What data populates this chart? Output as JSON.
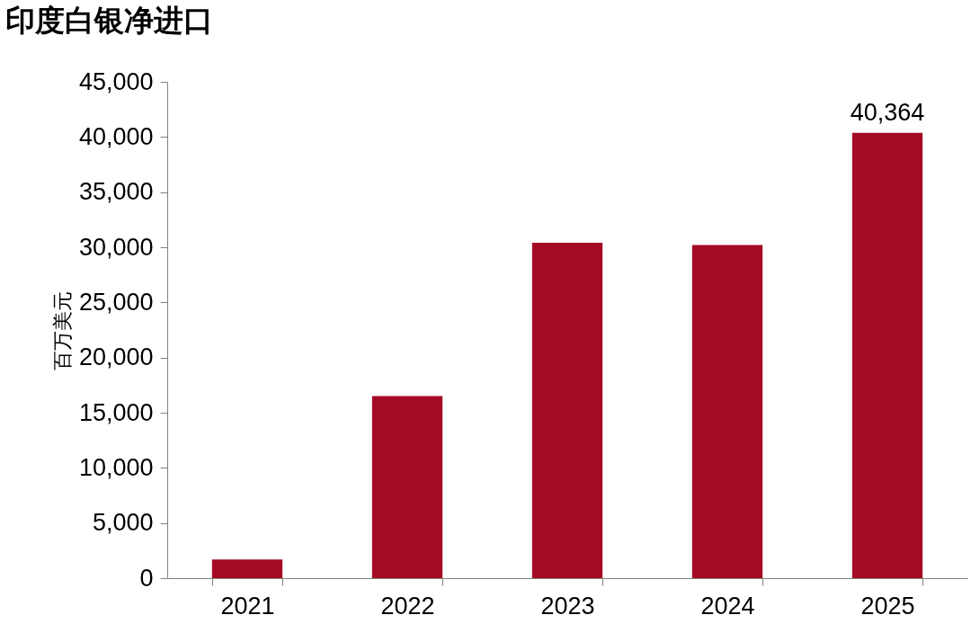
{
  "chart_data": {
    "type": "bar",
    "title": "印度白银净进口",
    "ylabel": "百万美元",
    "categories": [
      "2021",
      "2022",
      "2023",
      "2024",
      "2025"
    ],
    "values": [
      1700,
      16500,
      30400,
      30200,
      40364
    ],
    "value_labels": [
      null,
      null,
      null,
      null,
      "40,364"
    ],
    "color": "#a50a24",
    "ylim": [
      0,
      45000
    ],
    "yticks": [
      {
        "value": 0,
        "label": "0"
      },
      {
        "value": 5000,
        "label": "5,000"
      },
      {
        "value": 10000,
        "label": "10,000"
      },
      {
        "value": 15000,
        "label": "15,000"
      },
      {
        "value": 20000,
        "label": "20,000"
      },
      {
        "value": 25000,
        "label": "25,000"
      },
      {
        "value": 30000,
        "label": "30,000"
      },
      {
        "value": 35000,
        "label": "35,000"
      },
      {
        "value": 40000,
        "label": "40,000"
      },
      {
        "value": 45000,
        "label": "45,000"
      }
    ],
    "grid": false
  }
}
